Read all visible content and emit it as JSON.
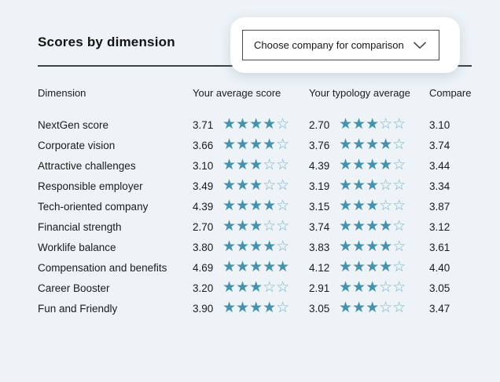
{
  "title": "Scores by dimension",
  "comparison": {
    "select_label": "Choose company for comparison",
    "chevron_icon": "chevron-down"
  },
  "table": {
    "headers": [
      "Dimension",
      "Your average score",
      "Your typology average",
      "Compare"
    ],
    "max_stars": 5,
    "rows": [
      {
        "dimension": "NextGen score",
        "your_score": "3.71",
        "your_stars": 4,
        "typology_score": "2.70",
        "typology_stars": 3,
        "compare": "3.10"
      },
      {
        "dimension": "Corporate vision",
        "your_score": "3.66",
        "your_stars": 4,
        "typology_score": "3.76",
        "typology_stars": 4,
        "compare": "3.74"
      },
      {
        "dimension": "Attractive challenges",
        "your_score": "3.10",
        "your_stars": 3,
        "typology_score": "4.39",
        "typology_stars": 4,
        "compare": "3.44"
      },
      {
        "dimension": "Responsible employer",
        "your_score": "3.49",
        "your_stars": 3,
        "typology_score": "3.19",
        "typology_stars": 3,
        "compare": "3.34"
      },
      {
        "dimension": "Tech-oriented company",
        "your_score": "4.39",
        "your_stars": 4,
        "typology_score": "3.15",
        "typology_stars": 3,
        "compare": "3.87"
      },
      {
        "dimension": "Financial strength",
        "your_score": "2.70",
        "your_stars": 3,
        "typology_score": "3.74",
        "typology_stars": 4,
        "compare": "3.12"
      },
      {
        "dimension": "Worklife balance",
        "your_score": "3.80",
        "your_stars": 4,
        "typology_score": "3.83",
        "typology_stars": 4,
        "compare": "3.61"
      },
      {
        "dimension": "Compensation and benefits",
        "your_score": "4.69",
        "your_stars": 5,
        "typology_score": "4.12",
        "typology_stars": 4,
        "compare": "4.40"
      },
      {
        "dimension": "Career Booster",
        "your_score": "3.20",
        "your_stars": 3,
        "typology_score": "2.91",
        "typology_stars": 3,
        "compare": "3.05"
      },
      {
        "dimension": "Fun and Friendly",
        "your_score": "3.90",
        "your_stars": 4,
        "typology_score": "3.05",
        "typology_stars": 3,
        "compare": "3.47"
      }
    ]
  },
  "colors": {
    "background": "#edf3f7",
    "star_filled": "#4691ac",
    "star_empty": "#7db2c6",
    "text": "#1b1b1b",
    "rule": "#3f3f3f",
    "card": "#ffffff"
  }
}
